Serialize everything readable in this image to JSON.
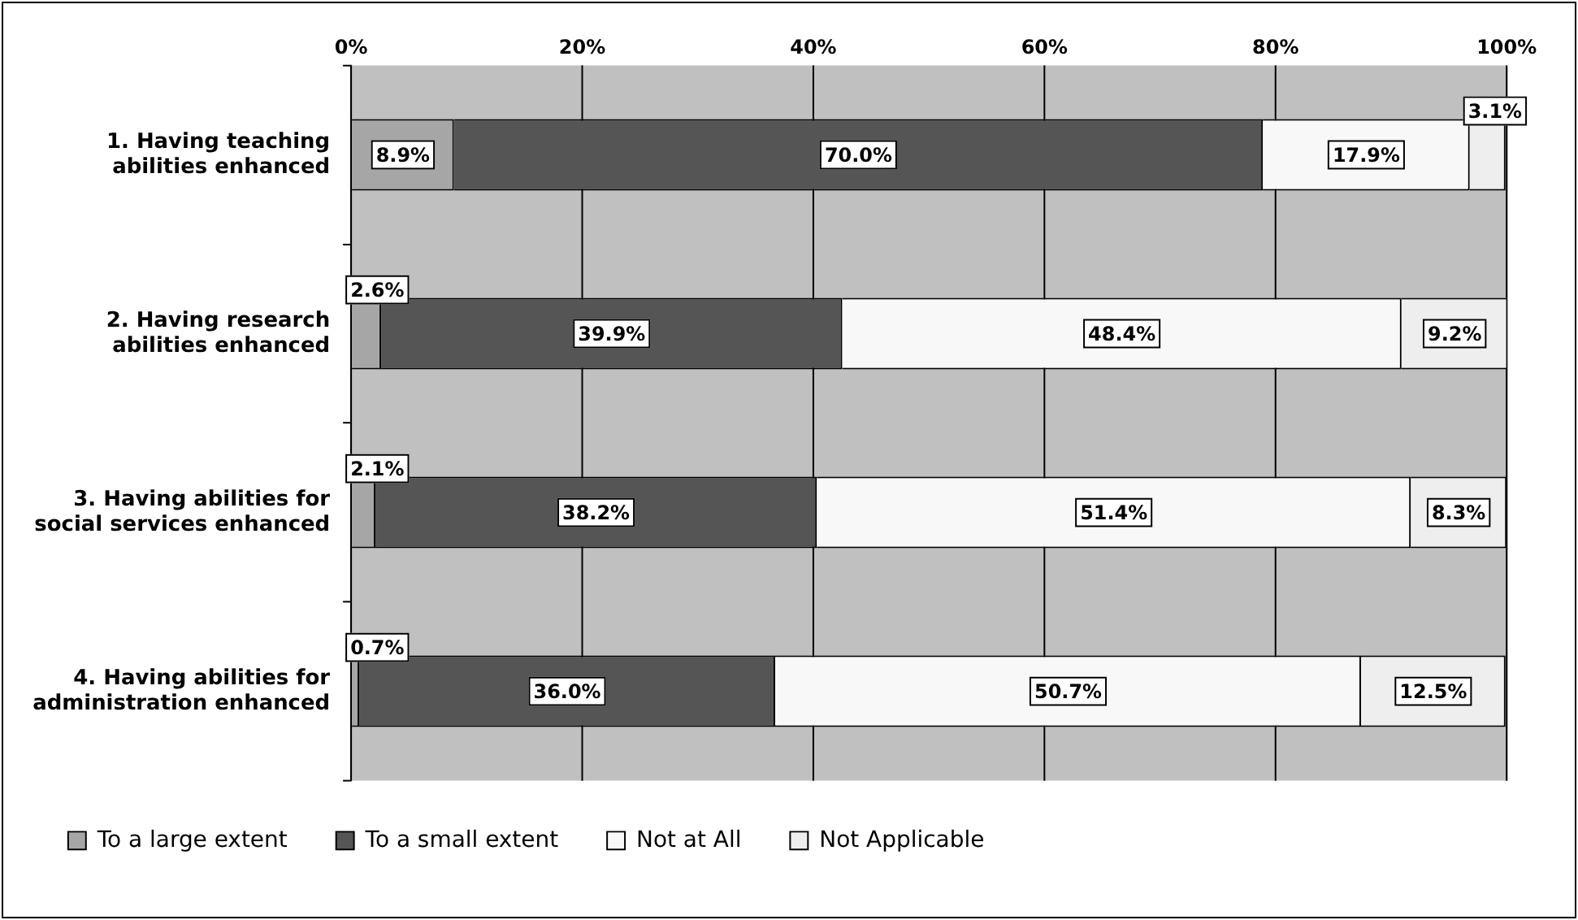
{
  "chart_data": {
    "type": "bar",
    "orientation": "horizontal",
    "stacked": true,
    "categories": [
      "1. Having teaching abilities enhanced",
      "2. Having research abilities enhanced",
      "3. Having abilities for social services enhanced",
      "4. Having abilities for administration enhanced"
    ],
    "series": [
      {
        "name": "To a large extent",
        "color": "#a6a6a6",
        "values": [
          8.9,
          2.6,
          2.1,
          0.7
        ],
        "value_labels": [
          "8.9%",
          "2.6%",
          "2.1%",
          "0.7%"
        ]
      },
      {
        "name": "To a small extent",
        "color": "#555555",
        "values": [
          70.0,
          39.9,
          38.2,
          36.0
        ],
        "value_labels": [
          "70.0%",
          "39.9%",
          "38.2%",
          "36.0%"
        ]
      },
      {
        "name": "Not at All",
        "color": "#f8f8f8",
        "values": [
          17.9,
          48.4,
          51.4,
          50.7
        ],
        "value_labels": [
          "17.9%",
          "48.4%",
          "51.4%",
          "50.7%"
        ]
      },
      {
        "name": "Not Applicable",
        "color": "#eeeeee",
        "values": [
          3.1,
          9.2,
          8.3,
          12.5
        ],
        "value_labels": [
          "3.1%",
          "9.2%",
          "8.3%",
          "12.5%"
        ]
      }
    ],
    "xlim": [
      0,
      100
    ],
    "xticks": [
      {
        "value": 0,
        "label": "0%"
      },
      {
        "value": 20,
        "label": "20%"
      },
      {
        "value": 40,
        "label": "40%"
      },
      {
        "value": 60,
        "label": "60%"
      },
      {
        "value": 80,
        "label": "80%"
      },
      {
        "value": 100,
        "label": "100%"
      }
    ],
    "grid": "x",
    "legend": "bottom left"
  }
}
